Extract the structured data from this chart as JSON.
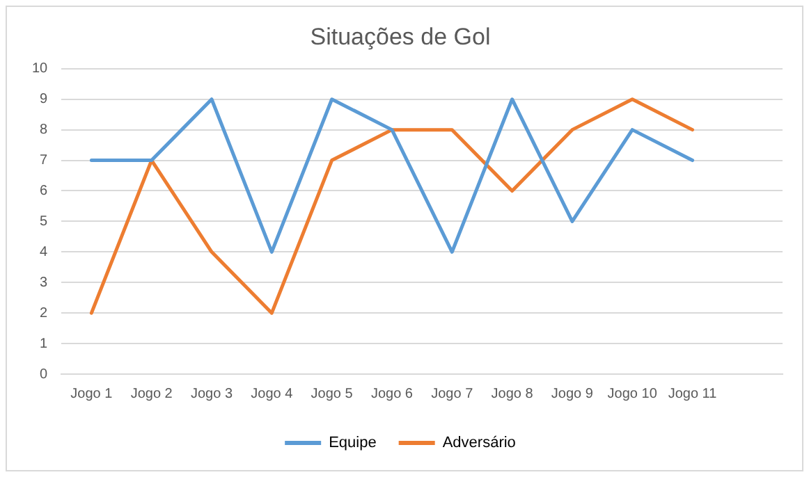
{
  "chart_data": {
    "type": "line",
    "title": "Situações de Gol",
    "categories": [
      "Jogo 1",
      "Jogo 2",
      "Jogo 3",
      "Jogo 4",
      "Jogo 5",
      "Jogo 6",
      "Jogo 7",
      "Jogo 8",
      "Jogo 9",
      "Jogo 10",
      "Jogo 11",
      null
    ],
    "series": [
      {
        "name": "Equipe",
        "color": "#5b9bd5",
        "values": [
          7,
          7,
          9,
          4,
          9,
          8,
          4,
          9,
          5,
          8,
          7,
          null
        ]
      },
      {
        "name": "Adversário",
        "color": "#ed7d31",
        "values": [
          2,
          7,
          4,
          2,
          7,
          8,
          8,
          6,
          8,
          9,
          8,
          null
        ]
      }
    ],
    "ylim": [
      0,
      10
    ],
    "yticks": [
      0,
      1,
      2,
      3,
      4,
      5,
      6,
      7,
      8,
      9,
      10
    ],
    "grid": "y",
    "legend": "bottom",
    "marker": "none",
    "line_style": "solid"
  }
}
